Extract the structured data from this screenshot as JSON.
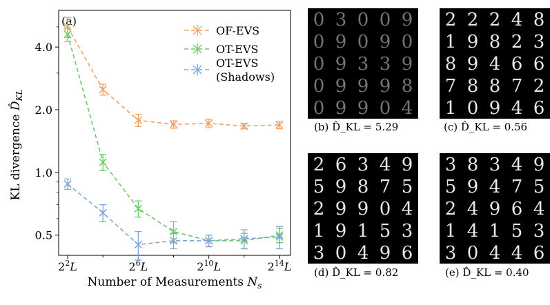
{
  "chart_data": {
    "type": "line",
    "panel_label": "(a)",
    "title": "",
    "xlabel": "Number of Measurements N_s",
    "ylabel": "KL divergence D̂_KL",
    "yscale": "log",
    "ylim": [
      0.4,
      6.0
    ],
    "x": [
      "2^2 L",
      "2^4 L",
      "2^6 L",
      "2^8 L",
      "2^10 L",
      "2^12 L",
      "2^14 L"
    ],
    "x_tick_labels": [
      "2^2 L",
      "2^6 L",
      "2^10 L",
      "2^14 L"
    ],
    "y_tick_labels": [
      "0.5",
      "1.0",
      "2.0",
      "4.0"
    ],
    "legend_position": "top-right",
    "series": [
      {
        "name": "OF-EVS",
        "color": "#f4a263",
        "values": [
          5.0,
          2.5,
          1.78,
          1.7,
          1.72,
          1.67,
          1.69
        ],
        "errors": [
          0.55,
          0.15,
          0.12,
          0.07,
          0.08,
          0.05,
          0.07
        ]
      },
      {
        "name": "OT-EVS",
        "color": "#6cc86c",
        "values": [
          4.6,
          1.12,
          0.67,
          0.52,
          0.47,
          0.47,
          0.5
        ],
        "errors": [
          0.35,
          0.1,
          0.06,
          0.06,
          0.03,
          0.04,
          0.04
        ]
      },
      {
        "name": "OT-EVS (Shadows)",
        "color": "#7fa5d8",
        "values": [
          0.88,
          0.64,
          0.45,
          0.47,
          0.47,
          0.48,
          0.49
        ],
        "errors": [
          0.05,
          0.06,
          0.07,
          0.04,
          0.03,
          0.05,
          0.06
        ]
      }
    ]
  },
  "legend": {
    "of_evs": "OF-EVS",
    "ot_evs": "OT-EVS",
    "shadows_line1": "OT-EVS",
    "shadows_line2": "(Shadows)"
  },
  "grids": [
    {
      "label": "(b)",
      "math": "D̂_KL = 5.29",
      "rows": [
        [
          "0",
          "3",
          "0",
          "0",
          "9"
        ],
        [
          "0",
          "9",
          "0",
          "9",
          "0"
        ],
        [
          "0",
          "9",
          "3",
          "3",
          "9"
        ],
        [
          "0",
          "9",
          "9",
          "9",
          "8"
        ],
        [
          "0",
          "9",
          "9",
          "0",
          "4"
        ]
      ]
    },
    {
      "label": "(c)",
      "math": "D̂_KL = 0.56",
      "rows": [
        [
          "2",
          "2",
          "2",
          "4",
          "8"
        ],
        [
          "1",
          "9",
          "8",
          "2",
          "3"
        ],
        [
          "8",
          "9",
          "4",
          "6",
          "6"
        ],
        [
          "7",
          "8",
          "8",
          "7",
          "2"
        ],
        [
          "1",
          "0",
          "9",
          "4",
          "6"
        ]
      ]
    },
    {
      "label": "(d)",
      "math": "D̂_KL = 0.82",
      "rows": [
        [
          "2",
          "6",
          "3",
          "4",
          "9"
        ],
        [
          "5",
          "9",
          "8",
          "7",
          "5"
        ],
        [
          "2",
          "9",
          "9",
          "0",
          "4"
        ],
        [
          "1",
          "9",
          "1",
          "5",
          "3"
        ],
        [
          "3",
          "0",
          "4",
          "9",
          "6"
        ]
      ]
    },
    {
      "label": "(e)",
      "math": "D̂_KL = 0.40",
      "rows": [
        [
          "3",
          "8",
          "3",
          "4",
          "9"
        ],
        [
          "5",
          "9",
          "4",
          "7",
          "5"
        ],
        [
          "2",
          "4",
          "9",
          "6",
          "4"
        ],
        [
          "1",
          "4",
          "1",
          "5",
          "3"
        ],
        [
          "3",
          "0",
          "4",
          "4",
          "6"
        ]
      ]
    }
  ]
}
